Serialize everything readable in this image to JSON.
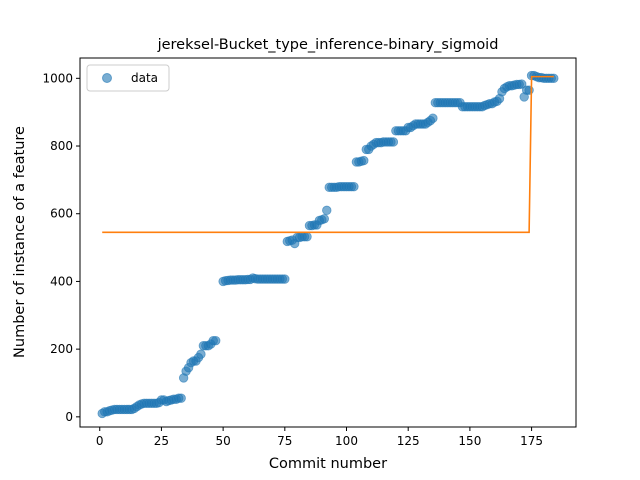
{
  "chart_data": {
    "type": "scatter",
    "title": "jereksel-Bucket_type_inference-binary_sigmoid",
    "xlabel": "Commit number",
    "ylabel": "Number of instance of a feature",
    "xlim": [
      -8,
      193
    ],
    "ylim": [
      -30,
      1060
    ],
    "xticks": [
      0,
      25,
      50,
      75,
      100,
      125,
      150,
      175
    ],
    "yticks": [
      0,
      200,
      400,
      600,
      800,
      1000
    ],
    "grid": false,
    "legend": {
      "placement": "top-left",
      "entries": [
        "data"
      ]
    },
    "colors": {
      "data": "#1f77b4",
      "fit": "#ff7f0e"
    },
    "series": [
      {
        "name": "data",
        "kind": "points",
        "points": [
          [
            1,
            10
          ],
          [
            2,
            15
          ],
          [
            3,
            15
          ],
          [
            4,
            18
          ],
          [
            5,
            20
          ],
          [
            6,
            22
          ],
          [
            7,
            22
          ],
          [
            8,
            22
          ],
          [
            9,
            22
          ],
          [
            10,
            22
          ],
          [
            11,
            22
          ],
          [
            12,
            22
          ],
          [
            13,
            22
          ],
          [
            14,
            25
          ],
          [
            15,
            30
          ],
          [
            16,
            35
          ],
          [
            17,
            38
          ],
          [
            18,
            40
          ],
          [
            19,
            40
          ],
          [
            20,
            40
          ],
          [
            21,
            40
          ],
          [
            22,
            40
          ],
          [
            23,
            40
          ],
          [
            24,
            42
          ],
          [
            25,
            50
          ],
          [
            26,
            50
          ],
          [
            27,
            45
          ],
          [
            28,
            48
          ],
          [
            29,
            50
          ],
          [
            30,
            52
          ],
          [
            31,
            52
          ],
          [
            32,
            55
          ],
          [
            33,
            55
          ],
          [
            34,
            115
          ],
          [
            35,
            135
          ],
          [
            36,
            145
          ],
          [
            37,
            160
          ],
          [
            38,
            165
          ],
          [
            39,
            165
          ],
          [
            40,
            175
          ],
          [
            41,
            185
          ],
          [
            42,
            210
          ],
          [
            43,
            210
          ],
          [
            44,
            210
          ],
          [
            45,
            215
          ],
          [
            46,
            225
          ],
          [
            47,
            225
          ],
          [
            50,
            400
          ],
          [
            51,
            402
          ],
          [
            52,
            403
          ],
          [
            53,
            404
          ],
          [
            54,
            404
          ],
          [
            55,
            404
          ],
          [
            56,
            405
          ],
          [
            57,
            405
          ],
          [
            58,
            405
          ],
          [
            59,
            405
          ],
          [
            60,
            406
          ],
          [
            61,
            406
          ],
          [
            62,
            410
          ],
          [
            63,
            408
          ],
          [
            64,
            407
          ],
          [
            65,
            407
          ],
          [
            66,
            407
          ],
          [
            67,
            407
          ],
          [
            68,
            407
          ],
          [
            69,
            407
          ],
          [
            70,
            407
          ],
          [
            71,
            407
          ],
          [
            72,
            407
          ],
          [
            73,
            407
          ],
          [
            74,
            407
          ],
          [
            75,
            407
          ],
          [
            76,
            518
          ],
          [
            77,
            520
          ],
          [
            78,
            522
          ],
          [
            79,
            512
          ],
          [
            80,
            530
          ],
          [
            81,
            530
          ],
          [
            82,
            532
          ],
          [
            83,
            532
          ],
          [
            84,
            532
          ],
          [
            85,
            565
          ],
          [
            86,
            565
          ],
          [
            87,
            567
          ],
          [
            88,
            567
          ],
          [
            89,
            580
          ],
          [
            90,
            582
          ],
          [
            91,
            585
          ],
          [
            92,
            610
          ],
          [
            93,
            678
          ],
          [
            94,
            678
          ],
          [
            95,
            678
          ],
          [
            96,
            678
          ],
          [
            97,
            680
          ],
          [
            98,
            680
          ],
          [
            99,
            680
          ],
          [
            100,
            680
          ],
          [
            101,
            680
          ],
          [
            102,
            680
          ],
          [
            103,
            680
          ],
          [
            104,
            753
          ],
          [
            105,
            753
          ],
          [
            106,
            755
          ],
          [
            107,
            757
          ],
          [
            108,
            790
          ],
          [
            109,
            790
          ],
          [
            110,
            800
          ],
          [
            111,
            805
          ],
          [
            112,
            810
          ],
          [
            113,
            810
          ],
          [
            114,
            810
          ],
          [
            115,
            812
          ],
          [
            116,
            812
          ],
          [
            117,
            812
          ],
          [
            118,
            812
          ],
          [
            119,
            812
          ],
          [
            120,
            845
          ],
          [
            121,
            845
          ],
          [
            122,
            845
          ],
          [
            123,
            845
          ],
          [
            124,
            845
          ],
          [
            125,
            855
          ],
          [
            126,
            855
          ],
          [
            127,
            860
          ],
          [
            128,
            865
          ],
          [
            129,
            865
          ],
          [
            130,
            865
          ],
          [
            131,
            865
          ],
          [
            132,
            865
          ],
          [
            133,
            870
          ],
          [
            134,
            875
          ],
          [
            135,
            882
          ],
          [
            136,
            928
          ],
          [
            137,
            928
          ],
          [
            138,
            928
          ],
          [
            139,
            928
          ],
          [
            140,
            928
          ],
          [
            141,
            928
          ],
          [
            142,
            928
          ],
          [
            143,
            928
          ],
          [
            144,
            928
          ],
          [
            145,
            928
          ],
          [
            146,
            928
          ],
          [
            147,
            916
          ],
          [
            148,
            916
          ],
          [
            149,
            916
          ],
          [
            150,
            916
          ],
          [
            151,
            916
          ],
          [
            152,
            916
          ],
          [
            153,
            916
          ],
          [
            154,
            916
          ],
          [
            155,
            916
          ],
          [
            156,
            920
          ],
          [
            157,
            922
          ],
          [
            158,
            925
          ],
          [
            159,
            925
          ],
          [
            160,
            930
          ],
          [
            161,
            932
          ],
          [
            162,
            940
          ],
          [
            163,
            960
          ],
          [
            164,
            970
          ],
          [
            165,
            975
          ],
          [
            166,
            978
          ],
          [
            167,
            978
          ],
          [
            168,
            980
          ],
          [
            169,
            982
          ],
          [
            170,
            982
          ],
          [
            171,
            983
          ],
          [
            172,
            945
          ],
          [
            173,
            965
          ],
          [
            174,
            965
          ],
          [
            175,
            1008
          ],
          [
            176,
            1008
          ],
          [
            177,
            1005
          ],
          [
            178,
            1002
          ],
          [
            179,
            1002
          ],
          [
            180,
            1000
          ],
          [
            181,
            1000
          ],
          [
            182,
            1000
          ],
          [
            183,
            1000
          ],
          [
            184,
            1000
          ]
        ]
      },
      {
        "kind": "line",
        "points": [
          [
            1,
            545
          ],
          [
            174,
            545
          ],
          [
            175,
            1005
          ],
          [
            184,
            1005
          ]
        ]
      }
    ]
  }
}
